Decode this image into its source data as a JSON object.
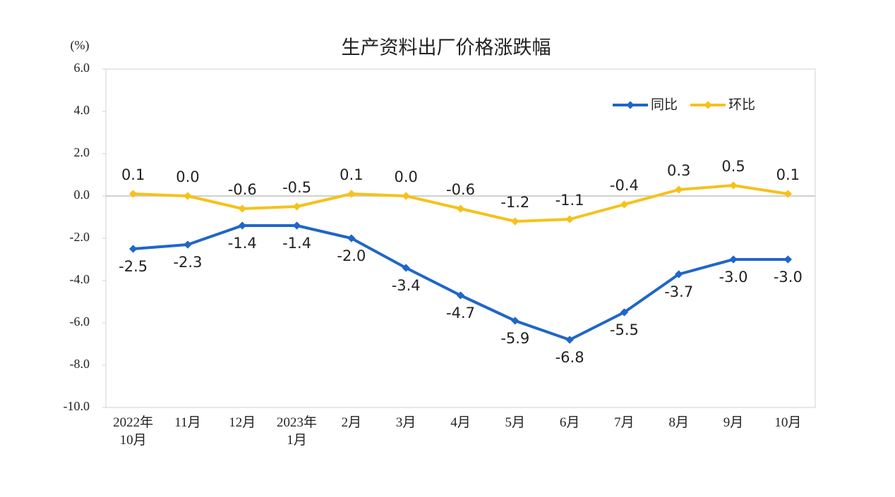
{
  "chart_data": {
    "type": "line",
    "title": "生产资料出厂价格涨跌幅",
    "y_label": "(%)",
    "categories": [
      "2022年\n10月",
      "11月",
      "12月",
      "2023年\n1月",
      "2月",
      "3月",
      "4月",
      "5月",
      "6月",
      "7月",
      "8月",
      "9月",
      "10月"
    ],
    "series": [
      {
        "name": "同比",
        "color": "#1f66c9",
        "values": [
          -2.5,
          -2.3,
          -1.4,
          -1.4,
          -2.0,
          -3.4,
          -4.7,
          -5.9,
          -6.8,
          -5.5,
          -3.7,
          -3.0,
          -3.0
        ],
        "value_labels": [
          "-2.5",
          "-2.3",
          "-1.4",
          "-1.4",
          "-2.0",
          "-3.4",
          "-4.7",
          "-5.9",
          "-6.8",
          "-5.5",
          "-3.7",
          "-3.0",
          "-3.0"
        ]
      },
      {
        "name": "环比",
        "color": "#f5c21b",
        "values": [
          0.1,
          0.0,
          -0.6,
          -0.5,
          0.1,
          0.0,
          -0.6,
          -1.2,
          -1.1,
          -0.4,
          0.3,
          0.5,
          0.1
        ],
        "value_labels": [
          "0.1",
          "0.0",
          "-0.6",
          "-0.5",
          "0.1",
          "0.0",
          "-0.6",
          "-1.2",
          "-1.1",
          "-0.4",
          "0.3",
          "0.5",
          "0.1"
        ]
      }
    ],
    "ylim": [
      -10,
      6
    ],
    "yticks": [
      {
        "value": -10,
        "label": "-10.0"
      },
      {
        "value": -8,
        "label": "-8.0"
      },
      {
        "value": -6,
        "label": "-6.0"
      },
      {
        "value": -4,
        "label": "-4.0"
      },
      {
        "value": -2,
        "label": "-2.0"
      },
      {
        "value": 0,
        "label": "0.0"
      },
      {
        "value": 2,
        "label": "2.0"
      },
      {
        "value": 4,
        "label": "4.0"
      },
      {
        "value": 6,
        "label": "6.0"
      }
    ],
    "grid": false,
    "legend": "upper right"
  }
}
